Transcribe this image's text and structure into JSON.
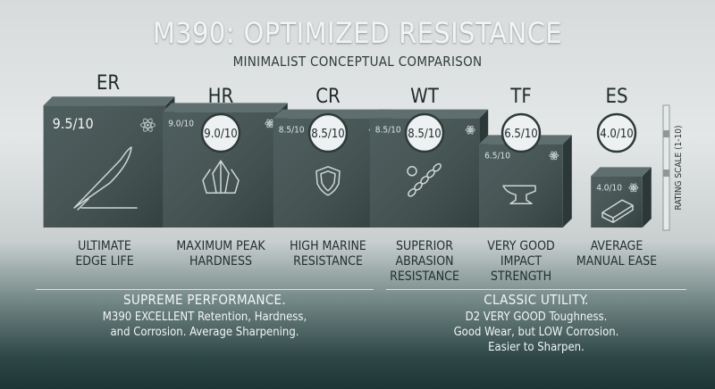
{
  "header": {
    "title": "M390: OPTIMIZED RESISTANCE",
    "subtitle": "MINIMALIST CONCEPTUAL COMPARISON"
  },
  "chart_data": {
    "type": "bar",
    "categories": [
      "ER",
      "HR",
      "CR",
      "WT",
      "TF",
      "ES"
    ],
    "values": [
      9.5,
      9.0,
      8.5,
      8.5,
      6.5,
      4.0
    ],
    "value_labels": [
      "9.5/10",
      "9.0/10",
      "8.5/10",
      "8.5/10",
      "6.5/10",
      "4.0/10"
    ],
    "captions": [
      [
        "ULTIMATE",
        "EDGE LIFE"
      ],
      [
        "MAXIMUM PEAK",
        "HARDNESS"
      ],
      [
        "HIGH MARINE",
        "RESISTANCE"
      ],
      [
        "SUPERIOR",
        "ABRASION",
        "RESISTANCE"
      ],
      [
        "VERY GOOD",
        "IMPACT",
        "STRENGTH"
      ],
      [
        "AVERAGE",
        "MANUAL EASE"
      ]
    ],
    "icons": [
      "knife-icon",
      "crystal-icon",
      "shield-icon",
      "chain-icon",
      "anvil-icon",
      "whetstone-icon"
    ],
    "ylabel": "RATING SCALE (1-10)",
    "ylim": [
      1,
      10
    ],
    "grid": false,
    "legend": "none"
  },
  "footer": {
    "left": {
      "heading": "SUPREME PERFORMANCE.",
      "lines": [
        "M390 EXCELLENT Retention, Hardness,",
        "and Corrosion. Average Sharpening."
      ]
    },
    "right": {
      "heading": "CLASSIC UTILITY.",
      "lines": [
        "D2 VERY GOOD Toughness.",
        "Good Wear, but LOW Corrosion.",
        "Easier to Sharpen."
      ]
    }
  },
  "colors": {
    "cube_front": "#3e4e4e",
    "cube_side": "#2c3838",
    "cube_top": "#5f6f6f",
    "text_dark": "#22302f",
    "text_light": "#f2f5f5"
  }
}
